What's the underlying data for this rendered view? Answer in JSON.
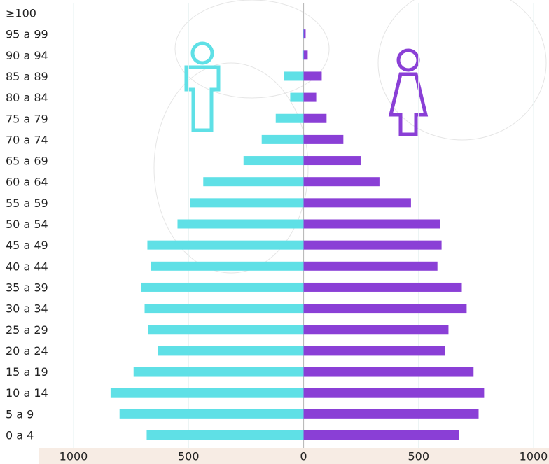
{
  "chart_data": {
    "type": "pyramid",
    "categories": [
      "0 a 4",
      "5 a 9",
      "10 a 14",
      "15 a 19",
      "20 a 24",
      "25 a 29",
      "30 a 34",
      "35 a 39",
      "40 a 44",
      "45 a 49",
      "50 a 54",
      "55 a 59",
      "60 a 64",
      "65 a 69",
      "70 a 74",
      "75 a 79",
      "80 a 84",
      "85 a 89",
      "90 a 94",
      "95 a 99",
      "≥100"
    ],
    "series": [
      {
        "color": "#5fe0e6",
        "values": [
          -682,
          -800,
          -839,
          -739,
          -633,
          -676,
          -691,
          -706,
          -664,
          -679,
          -548,
          -494,
          -436,
          -261,
          -182,
          -121,
          -58,
          -85,
          -5,
          -3,
          0
        ]
      },
      {
        "color": "#8a3fd6",
        "values": [
          676,
          761,
          785,
          739,
          615,
          630,
          709,
          688,
          582,
          600,
          594,
          467,
          330,
          248,
          173,
          100,
          55,
          79,
          18,
          9,
          0
        ]
      }
    ],
    "xlim": [
      -1000,
      1000
    ],
    "xticks": [
      {
        "value": -1000,
        "label": "1000"
      },
      {
        "value": -500,
        "label": "500"
      },
      0,
      500,
      1000
    ]
  }
}
